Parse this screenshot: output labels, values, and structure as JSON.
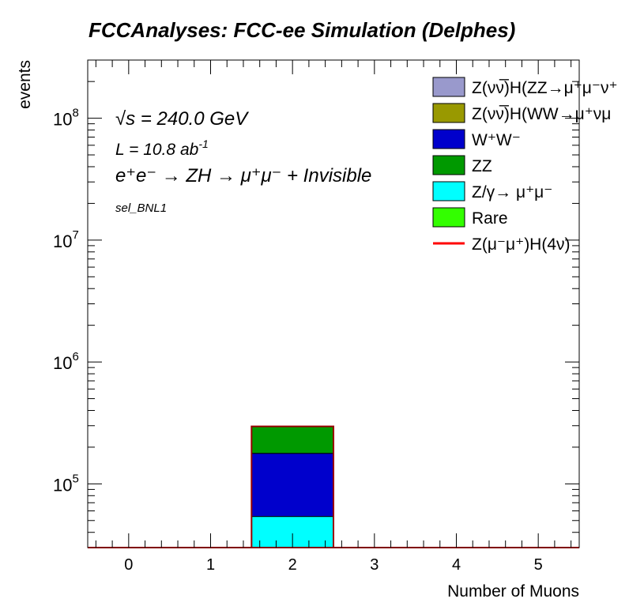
{
  "chart_data": {
    "type": "bar",
    "stacked": true,
    "title": "FCCAnalyses: FCC-ee Simulation (Delphes)",
    "xlabel": "Number of Muons",
    "ylabel": "events",
    "xlim": [
      -0.5,
      5.5
    ],
    "ylim": [
      30000,
      300000000
    ],
    "yscale": "log",
    "grid": false,
    "legend_position": "top-right",
    "x_ticks": [
      "0",
      "1",
      "2",
      "3",
      "4",
      "5"
    ],
    "y_ticks": [
      {
        "value": 100000,
        "base": "10",
        "exp": "5"
      },
      {
        "value": 1000000,
        "base": "10",
        "exp": "6"
      },
      {
        "value": 10000000,
        "base": "10",
        "exp": "7"
      },
      {
        "value": 100000000,
        "base": "10",
        "exp": "8"
      }
    ],
    "annotations": {
      "energy": "√s = 240.0 GeV",
      "lumi_prefix": "L = 10.8 ab",
      "lumi_exp": "-1",
      "process": "e⁺e⁻ → ZH → μ⁺μ⁻ + Invisible",
      "selection": "sel_BNL1"
    },
    "categories": [
      0,
      1,
      2,
      3,
      4,
      5
    ],
    "series": [
      {
        "name": "Z/γ→ μ⁺μ⁻",
        "color": "#00ffff",
        "values": [
          0,
          0,
          54000,
          0,
          0,
          0
        ]
      },
      {
        "name": "W⁺W⁻",
        "color": "#0000cc",
        "values": [
          0,
          0,
          124000,
          0,
          0,
          0
        ]
      },
      {
        "name": "ZZ",
        "color": "#009900",
        "values": [
          0,
          0,
          118000,
          0,
          0,
          0
        ]
      }
    ],
    "signal": {
      "name": "Z(μ⁻μ⁺)H(4ν)",
      "color": "#ff0000",
      "values": [
        0,
        0,
        0,
        0,
        0,
        0
      ]
    },
    "legend": [
      {
        "label": "Z(νν̅)H(ZZ→μ⁺μ⁻ν⁺",
        "color": "#9999cc",
        "style": "box"
      },
      {
        "label": "Z(νν̅)H(WW→μ⁺νμ",
        "color": "#999900",
        "style": "box"
      },
      {
        "label": "W⁺W⁻",
        "color": "#0000cc",
        "style": "box"
      },
      {
        "label": "ZZ",
        "color": "#009900",
        "style": "box"
      },
      {
        "label": "Z/γ→ μ⁺μ⁻",
        "color": "#00ffff",
        "style": "box"
      },
      {
        "label": "Rare",
        "color": "#33ff00",
        "style": "box"
      },
      {
        "label": "Z(μ⁻μ⁺)H(4ν)",
        "color": "#ff0000",
        "style": "line"
      }
    ]
  }
}
